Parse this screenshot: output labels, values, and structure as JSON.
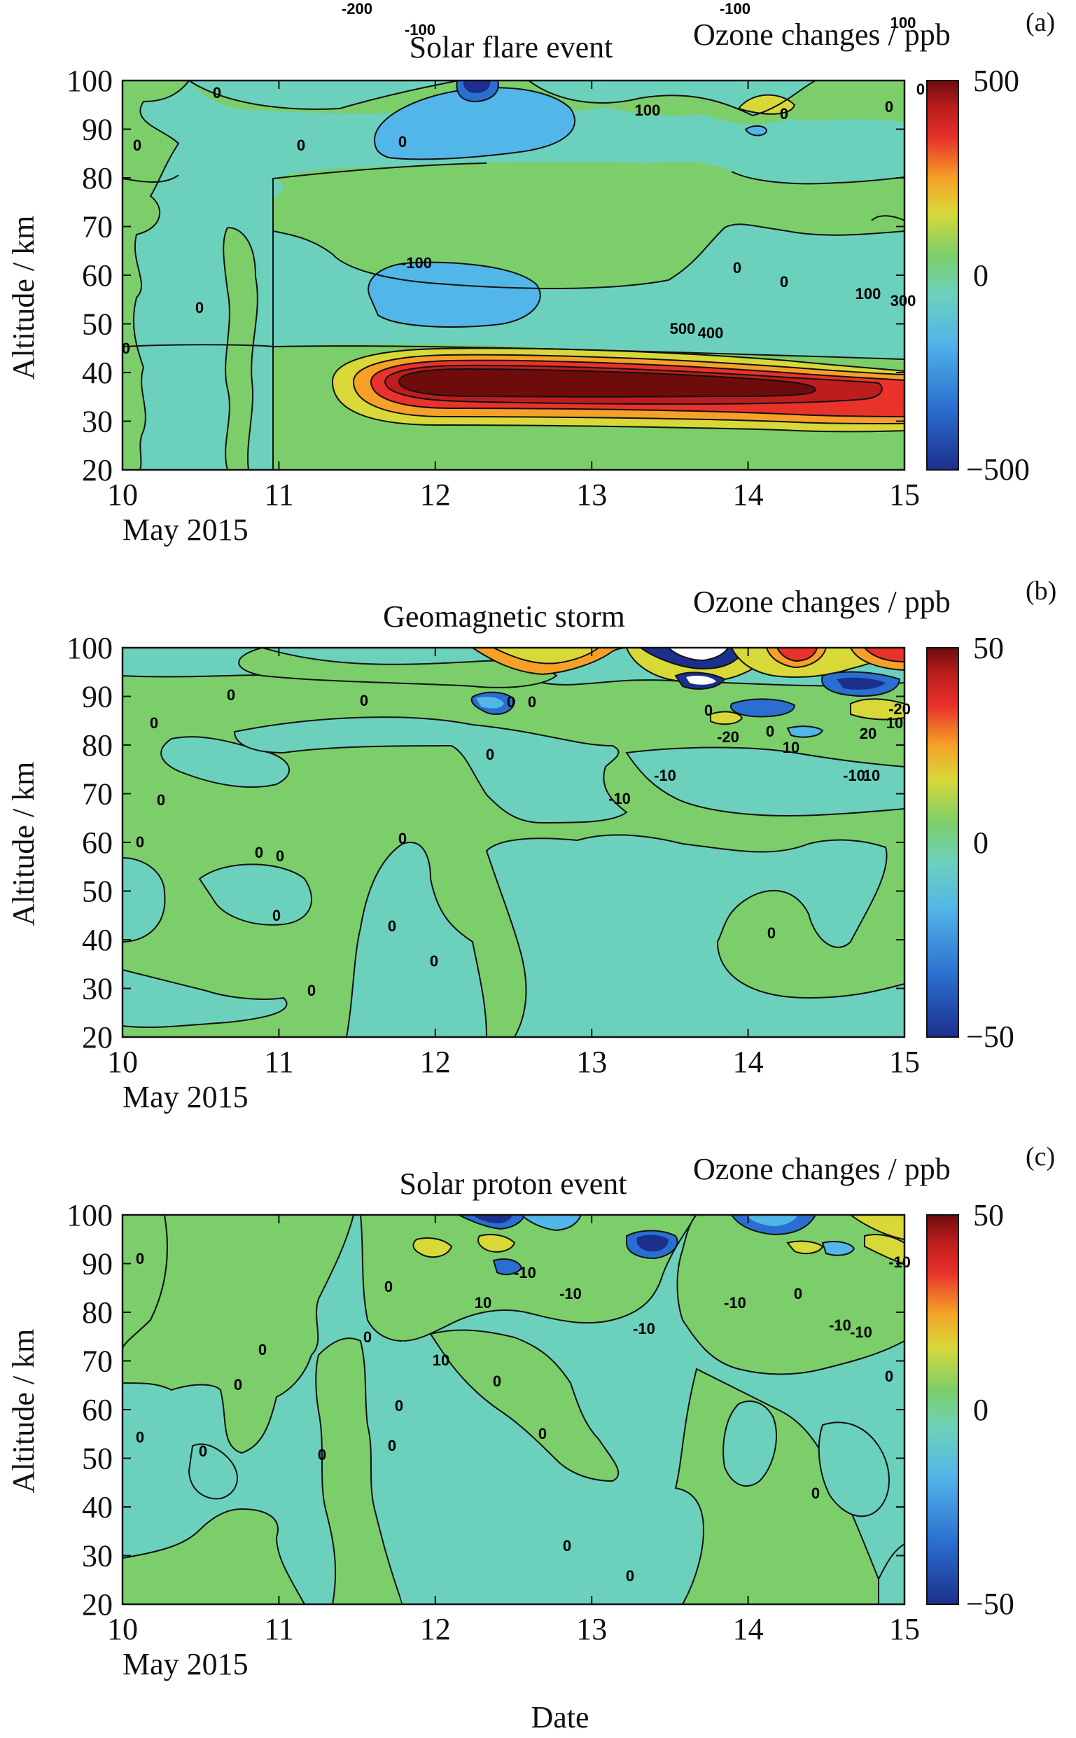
{
  "figure": {
    "xlabel": "Date",
    "x_ticks": [
      10,
      11,
      12,
      13,
      14,
      15
    ],
    "date_note": "May 2015",
    "y_ticks": [
      20,
      30,
      40,
      50,
      60,
      70,
      80,
      90,
      100
    ],
    "ylabel": "Altitude / km"
  },
  "chart_data": [
    {
      "type": "heatmap",
      "panel_label": "(a)",
      "title": "Solar flare event",
      "colorbar_title": "Ozone changes / ppb",
      "ylabel": "Altitude / km",
      "xlim": [
        10,
        15
      ],
      "ylim": [
        20,
        100
      ],
      "zlim": [
        -500,
        500
      ],
      "colorbar_ticks": [
        "500",
        "0",
        "−500"
      ],
      "colormap": [
        "#1c2f8c",
        "#2a6fd0",
        "#52b6e8",
        "#6cd1bc",
        "#7cce6a",
        "#d8d839",
        "#f6a028",
        "#e8322a",
        "#bd1d1d",
        "#6e0c0c"
      ],
      "regions": [
        {
          "value": -300,
          "x": [
            11.85,
            12.35
          ],
          "y": [
            93,
            101
          ]
        },
        {
          "value": -100,
          "x": [
            11.6,
            12.9
          ],
          "y": [
            86,
            100
          ]
        },
        {
          "value": -100,
          "x": [
            11.75,
            12.65
          ],
          "y": [
            47,
            60
          ]
        },
        {
          "value": 0,
          "x": [
            11.2,
            15.0
          ],
          "y": [
            66,
            78
          ]
        },
        {
          "value": 100,
          "x": [
            14.05,
            14.35
          ],
          "y": [
            92,
            98
          ]
        },
        {
          "value": 100,
          "x": [
            11.3,
            15.0
          ],
          "y": [
            25,
            43
          ]
        },
        {
          "value": 250,
          "x": [
            11.5,
            15.0
          ],
          "y": [
            27,
            41
          ]
        },
        {
          "value": 350,
          "x": [
            11.65,
            14.9
          ],
          "y": [
            28.5,
            40
          ]
        },
        {
          "value": 450,
          "x": [
            11.8,
            14.6
          ],
          "y": [
            30,
            39
          ]
        },
        {
          "value": 600,
          "x": [
            11.95,
            14.3
          ],
          "y": [
            31,
            38.5
          ]
        }
      ],
      "contour_labels": [
        "-200",
        "-100",
        "-100",
        "100",
        "100",
        "0",
        "0",
        "0",
        "0",
        "0",
        "0",
        "-100",
        "0",
        "100",
        "300",
        "500",
        "400",
        "0",
        "0",
        "0",
        "0"
      ]
    },
    {
      "type": "heatmap",
      "panel_label": "(b)",
      "title": "Geomagnetic storm",
      "colorbar_title": "Ozone changes / ppb",
      "ylabel": "Altitude / km",
      "xlim": [
        10,
        15
      ],
      "ylim": [
        20,
        100
      ],
      "zlim": [
        -50,
        50
      ],
      "colorbar_ticks": [
        "50",
        "0",
        "−50"
      ],
      "colormap": [
        "#1c2f8c",
        "#2a6fd0",
        "#52b6e8",
        "#6cd1bc",
        "#7cce6a",
        "#d8d839",
        "#f6a028",
        "#e8322a",
        "#bd1d1d",
        "#6e0c0c"
      ],
      "regions": [
        {
          "value": -5,
          "x": [
            10.0,
            10.3
          ],
          "y": [
            40,
            54
          ]
        },
        {
          "value": -5,
          "x": [
            10.6,
            11.3
          ],
          "y": [
            42,
            57
          ]
        },
        {
          "value": -5,
          "x": [
            11.75,
            12.5
          ],
          "y": [
            20,
            64
          ]
        },
        {
          "value": -5,
          "x": [
            12.65,
            15.0
          ],
          "y": [
            20,
            58
          ]
        },
        {
          "value": -5,
          "x": [
            10.4,
            11.6
          ],
          "y": [
            78,
            92
          ]
        },
        {
          "value": -5,
          "x": [
            12.6,
            13.5
          ],
          "y": [
            68,
            84
          ]
        },
        {
          "value": -5,
          "x": [
            11.0,
            13.3
          ],
          "y": [
            87,
            99
          ]
        },
        {
          "value": -20,
          "x": [
            12.35,
            12.65
          ],
          "y": [
            85,
            91
          ]
        },
        {
          "value": 20,
          "x": [
            12.8,
            13.4
          ],
          "y": [
            93,
            100
          ]
        },
        {
          "value": 20,
          "x": [
            13.5,
            14.0
          ],
          "y": [
            90,
            100
          ]
        },
        {
          "value": -50,
          "x": [
            13.55,
            13.8
          ],
          "y": [
            94,
            100
          ]
        },
        {
          "value": -30,
          "x": [
            13.6,
            13.85
          ],
          "y": [
            88,
            94
          ]
        },
        {
          "value": -35,
          "x": [
            13.85,
            14.2
          ],
          "y": [
            86,
            90
          ]
        },
        {
          "value": 35,
          "x": [
            14.15,
            14.45
          ],
          "y": [
            91,
            100
          ]
        },
        {
          "value": 30,
          "x": [
            14.6,
            15.0
          ],
          "y": [
            93,
            99
          ]
        },
        {
          "value": -30,
          "x": [
            14.45,
            14.9
          ],
          "y": [
            90,
            96
          ]
        },
        {
          "value": 10,
          "x": [
            14.6,
            15.0
          ],
          "y": [
            84,
            92
          ]
        }
      ],
      "contour_labels": [
        "0",
        "0",
        "0",
        "0",
        "0",
        "0",
        "0",
        "0",
        "0",
        "0",
        "0",
        "-10",
        "-20",
        "10",
        "20",
        "-20",
        "-10",
        "10",
        "10",
        "-10",
        "0",
        "0",
        "0",
        "0",
        "0",
        "0",
        "0"
      ]
    },
    {
      "type": "heatmap",
      "panel_label": "(c)",
      "title": "Solar proton event",
      "colorbar_title": "Ozone changes / ppb",
      "ylabel": "Altitude / km",
      "xlim": [
        10,
        15
      ],
      "ylim": [
        20,
        100
      ],
      "zlim": [
        -50,
        50
      ],
      "colorbar_ticks": [
        "50",
        "0",
        "−50"
      ],
      "colormap": [
        "#1c2f8c",
        "#2a6fd0",
        "#52b6e8",
        "#6cd1bc",
        "#7cce6a",
        "#d8d839",
        "#f6a028",
        "#e8322a",
        "#bd1d1d",
        "#6e0c0c"
      ],
      "regions": [
        {
          "value": -5,
          "x": [
            10.0,
            15.0
          ],
          "y": [
            20,
            100
          ]
        },
        {
          "value": 0,
          "x": [
            10.0,
            10.2
          ],
          "y": [
            62,
            100
          ]
        },
        {
          "value": 0,
          "x": [
            10.7,
            11.3
          ],
          "y": [
            20,
            100
          ]
        },
        {
          "value": 0,
          "x": [
            11.6,
            12.3
          ],
          "y": [
            60,
            100
          ]
        },
        {
          "value": 0,
          "x": [
            12.5,
            13.4
          ],
          "y": [
            64,
            98
          ]
        },
        {
          "value": 0,
          "x": [
            13.8,
            15.0
          ],
          "y": [
            62,
            98
          ]
        },
        {
          "value": 0,
          "x": [
            12.0,
            12.9
          ],
          "y": [
            20,
            44
          ]
        },
        {
          "value": 0,
          "x": [
            13.0,
            13.5
          ],
          "y": [
            40,
            58
          ]
        },
        {
          "value": 0,
          "x": [
            14.3,
            15.0
          ],
          "y": [
            30,
            52
          ]
        },
        {
          "value": 0,
          "x": [
            10.0,
            10.6
          ],
          "y": [
            20,
            30
          ]
        },
        {
          "value": -25,
          "x": [
            12.6,
            12.9
          ],
          "y": [
            96,
            100
          ]
        },
        {
          "value": -15,
          "x": [
            12.35,
            12.6
          ],
          "y": [
            86,
            92
          ]
        },
        {
          "value": -30,
          "x": [
            13.3,
            13.65
          ],
          "y": [
            90,
            97
          ]
        },
        {
          "value": -15,
          "x": [
            13.9,
            14.6
          ],
          "y": [
            95,
            100
          ]
        },
        {
          "value": 12,
          "x": [
            12.1,
            12.45
          ],
          "y": [
            90,
            97
          ]
        },
        {
          "value": 12,
          "x": [
            14.8,
            15.0
          ],
          "y": [
            92,
            100
          ]
        }
      ],
      "contour_labels": [
        "0",
        "0",
        "0",
        "0",
        "0",
        "0",
        "0",
        "0",
        "0",
        "0",
        "0",
        "0",
        "0",
        "0",
        "0",
        "0",
        "0",
        "10",
        "10",
        "-10",
        "-10",
        "-10",
        "-10",
        "-10",
        "-10",
        "-10"
      ]
    }
  ]
}
